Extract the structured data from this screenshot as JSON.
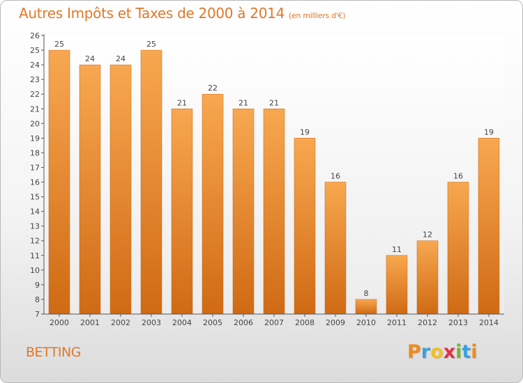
{
  "header": {
    "title": "Autres Impôts et Taxes de 2000 à 2014",
    "subtitle": "(en milliers d'€)"
  },
  "footer": {
    "commune": "BETTING",
    "logo_letters": [
      "P",
      "r",
      "o",
      "x",
      "i",
      "t",
      "i"
    ],
    "logo_colors": [
      "#f08a1c",
      "#3aa0e0",
      "#f0c020",
      "#e0304a",
      "#70b830",
      "#3aa0e0",
      "#f08a1c"
    ]
  },
  "chart_data": {
    "type": "bar",
    "title": "Autres Impôts et Taxes de 2000 à 2014",
    "subtitle": "(en milliers d'€)",
    "xlabel": "",
    "ylabel": "",
    "categories": [
      "2000",
      "2001",
      "2002",
      "2003",
      "2004",
      "2005",
      "2006",
      "2007",
      "2008",
      "2009",
      "2010",
      "2011",
      "2012",
      "2013",
      "2014"
    ],
    "values": [
      25,
      24,
      24,
      25,
      21,
      22,
      21,
      21,
      19,
      16,
      8,
      11,
      12,
      16,
      19
    ],
    "ylim": [
      7,
      26
    ],
    "yticks": [
      7,
      8,
      9,
      10,
      11,
      12,
      13,
      14,
      15,
      16,
      17,
      18,
      19,
      20,
      21,
      22,
      23,
      24,
      25,
      26
    ],
    "grid": false,
    "bar_color_light": "#f8a850",
    "bar_color_dark": "#d06a14"
  }
}
